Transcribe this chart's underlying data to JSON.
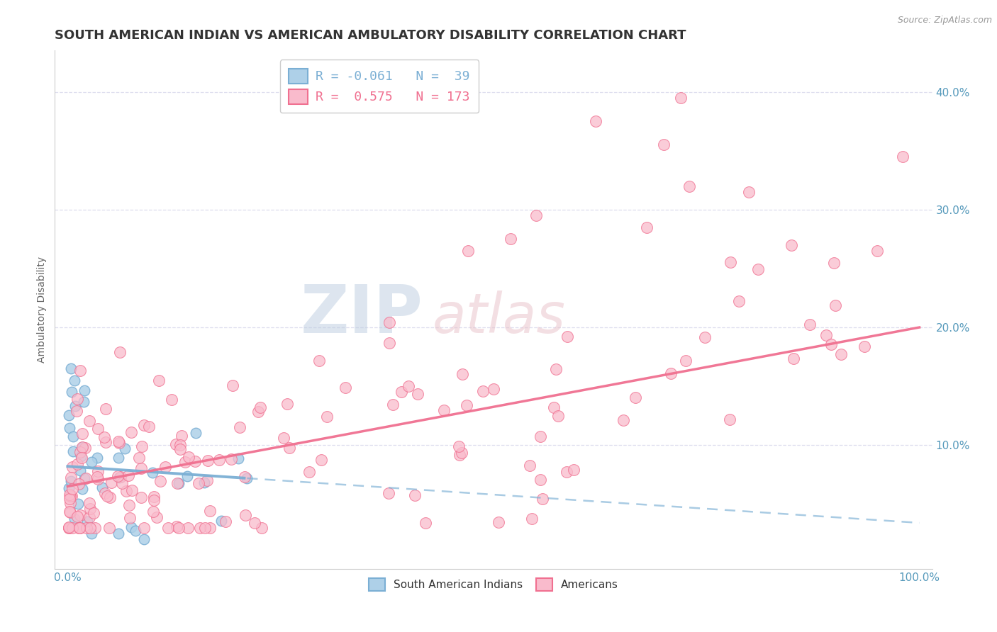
{
  "title": "SOUTH AMERICAN INDIAN VS AMERICAN AMBULATORY DISABILITY CORRELATION CHART",
  "source_text": "Source: ZipAtlas.com",
  "ylabel": "Ambulatory Disability",
  "xlabel": "",
  "x_min": 0.0,
  "x_max": 1.0,
  "y_min": -0.005,
  "y_max": 0.435,
  "blue_R": -0.061,
  "blue_N": 39,
  "pink_R": 0.575,
  "pink_N": 173,
  "blue_color": "#7BAFD4",
  "blue_fill": "#AED0E8",
  "pink_color": "#F07090",
  "pink_fill": "#F9BBCC",
  "legend_blue_label": "South American Indians",
  "legend_pink_label": "Americans",
  "watermark_zip": "ZIP",
  "watermark_atlas": "atlas",
  "background_color": "#FFFFFF",
  "grid_color": "#DDDDEE",
  "title_color": "#333333",
  "title_fontsize": 13,
  "tick_label_color": "#5599BB",
  "y_ticks": [
    0.1,
    0.2,
    0.3,
    0.4
  ],
  "y_tick_labels": [
    "10.0%",
    "20.0%",
    "30.0%",
    "40.0%"
  ],
  "x_ticks": [
    0.0,
    0.1,
    0.2,
    0.3,
    0.4,
    0.5,
    0.6,
    0.7,
    0.8,
    0.9,
    1.0
  ],
  "x_tick_labels": [
    "0.0%",
    "",
    "",
    "",
    "",
    "",
    "",
    "",
    "",
    "",
    "100.0%"
  ],
  "blue_trend_solid_end": 0.21,
  "blue_trend_slope": -0.048,
  "blue_trend_intercept": 0.082,
  "pink_trend_slope": 0.135,
  "pink_trend_intercept": 0.065
}
